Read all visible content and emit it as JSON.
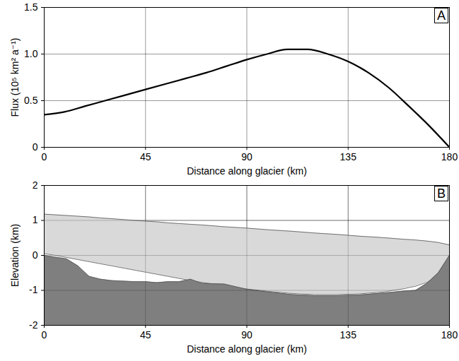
{
  "chart_data": [
    {
      "type": "line",
      "title": "A",
      "x_label": "Distance along glacier (km)",
      "y_label": "Flux (10⁵ km² a⁻¹)",
      "x": [
        0,
        9,
        18,
        27,
        36,
        45,
        54,
        63,
        72,
        81,
        90,
        99,
        108,
        117,
        126,
        135,
        144,
        153,
        162,
        171,
        180
      ],
      "series": [
        {
          "color": "#000000",
          "values": [
            0.35,
            0.38,
            0.44,
            0.5,
            0.56,
            0.62,
            0.68,
            0.74,
            0.8,
            0.87,
            0.94,
            1.0,
            1.05,
            1.05,
            1.0,
            0.92,
            0.8,
            0.64,
            0.44,
            0.23,
            0
          ]
        }
      ],
      "xlim": [
        0,
        180
      ],
      "xticks": [
        0,
        45,
        90,
        135,
        180
      ],
      "ylim": [
        0,
        1.5
      ],
      "yticks": [
        0,
        0.5,
        {
          "value": 1,
          "label": "1.0"
        },
        1.5
      ],
      "grid": true
    },
    {
      "type": "area",
      "title": "B",
      "x_label": "Distance along glacier (km)",
      "y_label": "Elevation (km)",
      "x": [
        0,
        5,
        10,
        15,
        20,
        25,
        30,
        40,
        45,
        50,
        55,
        60,
        65,
        70,
        80,
        90,
        100,
        110,
        120,
        130,
        140,
        150,
        160,
        165,
        170,
        175,
        180
      ],
      "series": [
        {
          "type": "area",
          "color": "#d9d9d9",
          "values": [
            1.18,
            1.16,
            1.14,
            1.12,
            1.1,
            1.07,
            1.05,
            1.0,
            0.98,
            0.96,
            0.93,
            0.91,
            0.89,
            0.87,
            0.82,
            0.78,
            0.73,
            0.69,
            0.64,
            0.6,
            0.55,
            0.51,
            0.46,
            0.44,
            0.41,
            0.37,
            0.3
          ]
        },
        {
          "type": "area",
          "color": "#ffffff",
          "values": [
            0.05,
            0.0,
            -0.06,
            -0.12,
            -0.18,
            -0.24,
            -0.3,
            -0.42,
            -0.48,
            -0.54,
            -0.6,
            -0.66,
            -0.72,
            -0.77,
            -0.87,
            -0.96,
            -1.03,
            -1.09,
            -1.12,
            -1.12,
            -1.1,
            -1.05,
            -0.95,
            -0.88,
            -0.77,
            -0.55,
            0.0
          ]
        },
        {
          "type": "area",
          "color": "#7f7f7f",
          "values": [
            0.0,
            -0.05,
            -0.1,
            -0.3,
            -0.6,
            -0.68,
            -0.72,
            -0.75,
            -0.75,
            -0.78,
            -0.75,
            -0.75,
            -0.68,
            -0.8,
            -0.82,
            -0.97,
            -1.05,
            -1.12,
            -1.15,
            -1.15,
            -1.13,
            -1.08,
            -1.02,
            -1.0,
            -0.8,
            -0.5,
            0.0
          ]
        }
      ],
      "xlim": [
        0,
        180
      ],
      "xticks": [
        0,
        45,
        90,
        135,
        180
      ],
      "ylim": [
        -2,
        2
      ],
      "yticks": [
        -2,
        -1,
        0,
        1,
        2
      ],
      "grid": true
    }
  ]
}
